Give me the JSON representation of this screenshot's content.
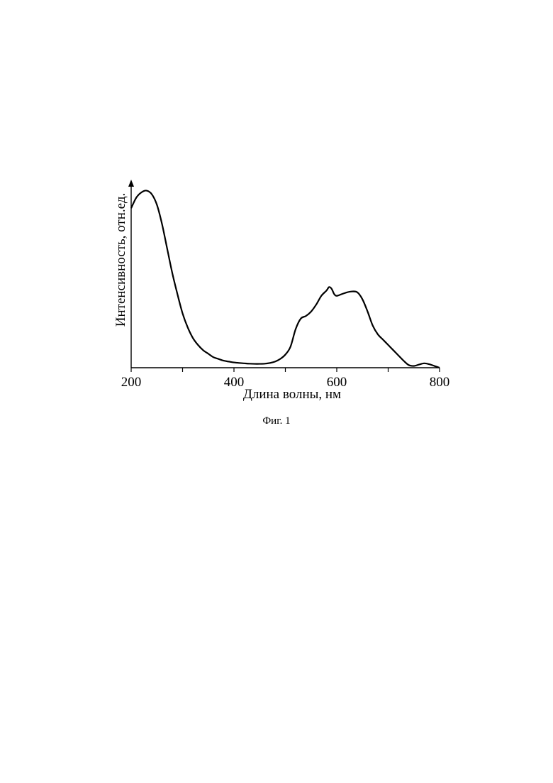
{
  "caption": "Фиг. 1",
  "chart_data": {
    "type": "line",
    "title": "",
    "xlabel": "Длина волны, нм",
    "ylabel": "Интенсивность, отн.ед.",
    "xlim": [
      200,
      800
    ],
    "ylim": [
      0,
      1.0
    ],
    "x_ticks": [
      200,
      300,
      400,
      500,
      600,
      700,
      800
    ],
    "x_tick_labels": [
      "200",
      "400",
      "600",
      "800"
    ],
    "y_ticks_shown": false,
    "grid": false,
    "legend": "none",
    "series": [
      {
        "color": "#000000",
        "points": [
          [
            200,
            0.91
          ],
          [
            210,
            0.97
          ],
          [
            220,
            1.0
          ],
          [
            230,
            1.01
          ],
          [
            240,
            0.99
          ],
          [
            250,
            0.93
          ],
          [
            260,
            0.82
          ],
          [
            270,
            0.68
          ],
          [
            280,
            0.54
          ],
          [
            290,
            0.42
          ],
          [
            300,
            0.31
          ],
          [
            310,
            0.23
          ],
          [
            320,
            0.17
          ],
          [
            330,
            0.13
          ],
          [
            340,
            0.1
          ],
          [
            350,
            0.08
          ],
          [
            360,
            0.06
          ],
          [
            370,
            0.05
          ],
          [
            380,
            0.04
          ],
          [
            390,
            0.035
          ],
          [
            400,
            0.03
          ],
          [
            410,
            0.027
          ],
          [
            420,
            0.025
          ],
          [
            430,
            0.023
          ],
          [
            440,
            0.022
          ],
          [
            450,
            0.022
          ],
          [
            460,
            0.023
          ],
          [
            470,
            0.027
          ],
          [
            480,
            0.035
          ],
          [
            490,
            0.05
          ],
          [
            500,
            0.075
          ],
          [
            510,
            0.12
          ],
          [
            520,
            0.22
          ],
          [
            530,
            0.28
          ],
          [
            540,
            0.295
          ],
          [
            550,
            0.32
          ],
          [
            560,
            0.36
          ],
          [
            570,
            0.41
          ],
          [
            580,
            0.44
          ],
          [
            585,
            0.46
          ],
          [
            590,
            0.45
          ],
          [
            595,
            0.42
          ],
          [
            600,
            0.41
          ],
          [
            610,
            0.42
          ],
          [
            620,
            0.43
          ],
          [
            630,
            0.435
          ],
          [
            640,
            0.43
          ],
          [
            650,
            0.39
          ],
          [
            660,
            0.32
          ],
          [
            670,
            0.24
          ],
          [
            680,
            0.19
          ],
          [
            690,
            0.16
          ],
          [
            700,
            0.13
          ],
          [
            710,
            0.1
          ],
          [
            720,
            0.07
          ],
          [
            730,
            0.04
          ],
          [
            740,
            0.015
          ],
          [
            750,
            0.01
          ],
          [
            760,
            0.018
          ],
          [
            770,
            0.025
          ],
          [
            780,
            0.02
          ],
          [
            790,
            0.01
          ],
          [
            800,
            0.0
          ]
        ]
      }
    ]
  }
}
